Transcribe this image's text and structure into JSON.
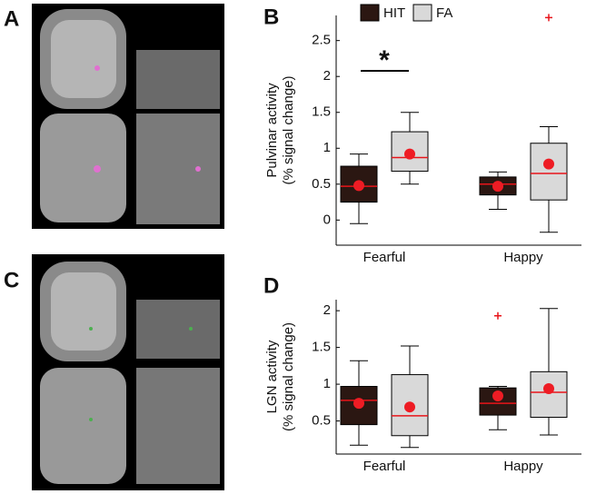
{
  "image_panels": [
    "A",
    "C"
  ],
  "chart_data": [
    {
      "type": "box",
      "panel": "B",
      "ylabel": [
        "Pulvinar activity",
        "(% signal change)"
      ],
      "categories": [
        "Fearful",
        "Happy"
      ],
      "ylim": [
        -0.35,
        2.85
      ],
      "yticks": [
        0,
        0.5,
        1,
        1.5,
        2,
        2.5
      ],
      "legend": true,
      "annotations": [
        {
          "text": "*"
        }
      ],
      "series": [
        {
          "name": "HIT",
          "color": "#2b1712",
          "boxes": [
            {
              "low": -0.05,
              "q1": 0.25,
              "median": 0.47,
              "q3": 0.75,
              "high": 0.92,
              "mean": 0.48,
              "outliers": []
            },
            {
              "low": 0.15,
              "q1": 0.35,
              "median": 0.5,
              "q3": 0.6,
              "high": 0.67,
              "mean": 0.47,
              "outliers": []
            }
          ]
        },
        {
          "name": "FA",
          "color": "#d9d9d9",
          "boxes": [
            {
              "low": 0.5,
              "q1": 0.68,
              "median": 0.87,
              "q3": 1.23,
              "high": 1.5,
              "mean": 0.92,
              "outliers": []
            },
            {
              "low": -0.17,
              "q1": 0.28,
              "median": 0.65,
              "q3": 1.07,
              "high": 1.3,
              "mean": 0.78,
              "outliers": [
                2.82
              ]
            }
          ]
        }
      ]
    },
    {
      "type": "box",
      "panel": "D",
      "ylabel": [
        "LGN activity",
        "(% signal change)"
      ],
      "categories": [
        "Fearful",
        "Happy"
      ],
      "ylim": [
        0.05,
        2.15
      ],
      "yticks": [
        0.5,
        1,
        1.5,
        2
      ],
      "legend": false,
      "series": [
        {
          "color": "#2b1712",
          "boxes": [
            {
              "low": 0.17,
              "q1": 0.45,
              "median": 0.78,
              "q3": 0.97,
              "high": 1.32,
              "mean": 0.74,
              "outliers": []
            },
            {
              "low": 0.38,
              "q1": 0.58,
              "median": 0.74,
              "q3": 0.95,
              "high": 0.97,
              "mean": 0.84,
              "outliers": [
                1.93
              ]
            }
          ]
        },
        {
          "color": "#d9d9d9",
          "boxes": [
            {
              "low": 0.14,
              "q1": 0.3,
              "median": 0.57,
              "q3": 1.13,
              "high": 1.52,
              "mean": 0.69,
              "outliers": []
            },
            {
              "low": 0.31,
              "q1": 0.55,
              "median": 0.89,
              "q3": 1.17,
              "high": 2.03,
              "mean": 0.94,
              "outliers": []
            }
          ]
        }
      ]
    }
  ]
}
